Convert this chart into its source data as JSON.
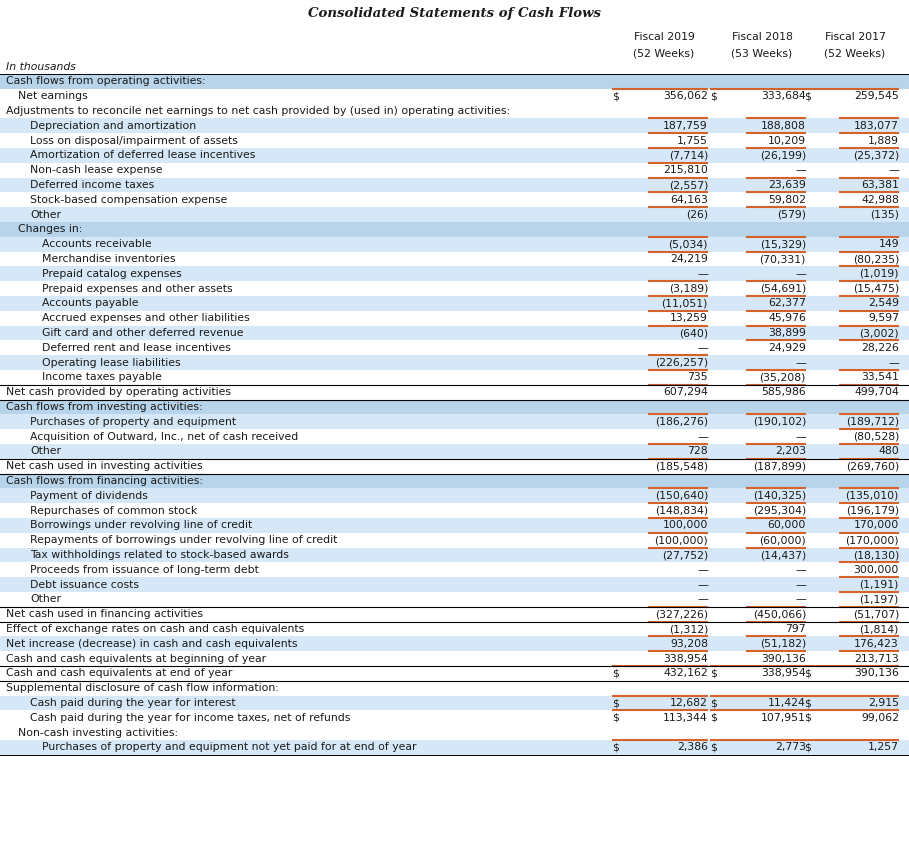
{
  "title": "Consolidated Statements of Cash Flows",
  "rows": [
    {
      "label": "Cash flows from operating activities:",
      "v1": "",
      "v2": "",
      "v3": "",
      "indent": 0,
      "style": "section"
    },
    {
      "label": "Net earnings",
      "v1": "356,062",
      "v2": "333,684",
      "v3": "259,545",
      "indent": 1,
      "style": "normal",
      "dollar": true
    },
    {
      "label": "Adjustments to reconcile net earnings to net cash provided by (used in) operating activities:",
      "v1": "",
      "v2": "",
      "v3": "",
      "indent": 0,
      "style": "normal"
    },
    {
      "label": "Depreciation and amortization",
      "v1": "187,759",
      "v2": "188,808",
      "v3": "183,077",
      "indent": 2,
      "style": "shaded",
      "dollar": false
    },
    {
      "label": "Loss on disposal/impairment of assets",
      "v1": "1,755",
      "v2": "10,209",
      "v3": "1,889",
      "indent": 2,
      "style": "normal",
      "dollar": false
    },
    {
      "label": "Amortization of deferred lease incentives",
      "v1": "(7,714)",
      "v2": "(26,199)",
      "v3": "(25,372)",
      "indent": 2,
      "style": "shaded",
      "dollar": false
    },
    {
      "label": "Non-cash lease expense",
      "v1": "215,810",
      "v2": "—",
      "v3": "—",
      "indent": 2,
      "style": "normal",
      "dollar": false
    },
    {
      "label": "Deferred income taxes",
      "v1": "(2,557)",
      "v2": "23,639",
      "v3": "63,381",
      "indent": 2,
      "style": "shaded",
      "dollar": false
    },
    {
      "label": "Stock-based compensation expense",
      "v1": "64,163",
      "v2": "59,802",
      "v3": "42,988",
      "indent": 2,
      "style": "normal",
      "dollar": false
    },
    {
      "label": "Other",
      "v1": "(26)",
      "v2": "(579)",
      "v3": "(135)",
      "indent": 2,
      "style": "shaded",
      "dollar": false
    },
    {
      "label": "Changes in:",
      "v1": "",
      "v2": "",
      "v3": "",
      "indent": 1,
      "style": "section"
    },
    {
      "label": "Accounts receivable",
      "v1": "(5,034)",
      "v2": "(15,329)",
      "v3": "149",
      "indent": 3,
      "style": "shaded",
      "dollar": false
    },
    {
      "label": "Merchandise inventories",
      "v1": "24,219",
      "v2": "(70,331)",
      "v3": "(80,235)",
      "indent": 3,
      "style": "normal",
      "dollar": false
    },
    {
      "label": "Prepaid catalog expenses",
      "v1": "—",
      "v2": "—",
      "v3": "(1,019)",
      "indent": 3,
      "style": "shaded",
      "dollar": false
    },
    {
      "label": "Prepaid expenses and other assets",
      "v1": "(3,189)",
      "v2": "(54,691)",
      "v3": "(15,475)",
      "indent": 3,
      "style": "normal",
      "dollar": false
    },
    {
      "label": "Accounts payable",
      "v1": "(11,051)",
      "v2": "62,377",
      "v3": "2,549",
      "indent": 3,
      "style": "shaded",
      "dollar": false
    },
    {
      "label": "Accrued expenses and other liabilities",
      "v1": "13,259",
      "v2": "45,976",
      "v3": "9,597",
      "indent": 3,
      "style": "normal",
      "dollar": false
    },
    {
      "label": "Gift card and other deferred revenue",
      "v1": "(640)",
      "v2": "38,899",
      "v3": "(3,002)",
      "indent": 3,
      "style": "shaded",
      "dollar": false
    },
    {
      "label": "Deferred rent and lease incentives",
      "v1": "—",
      "v2": "24,929",
      "v3": "28,226",
      "indent": 3,
      "style": "normal",
      "dollar": false
    },
    {
      "label": "Operating lease liabilities",
      "v1": "(226,257)",
      "v2": "—",
      "v3": "—",
      "indent": 3,
      "style": "shaded",
      "dollar": false
    },
    {
      "label": "Income taxes payable",
      "v1": "735",
      "v2": "(35,208)",
      "v3": "33,541",
      "indent": 3,
      "style": "normal",
      "dollar": false
    },
    {
      "label": "Net cash provided by operating activities",
      "v1": "607,294",
      "v2": "585,986",
      "v3": "499,704",
      "indent": 0,
      "style": "total",
      "dollar": false
    },
    {
      "label": "Cash flows from investing activities:",
      "v1": "",
      "v2": "",
      "v3": "",
      "indent": 0,
      "style": "section"
    },
    {
      "label": "Purchases of property and equipment",
      "v1": "(186,276)",
      "v2": "(190,102)",
      "v3": "(189,712)",
      "indent": 2,
      "style": "shaded",
      "dollar": false
    },
    {
      "label": "Acquisition of Outward, Inc., net of cash received",
      "v1": "—",
      "v2": "—",
      "v3": "(80,528)",
      "indent": 2,
      "style": "normal",
      "dollar": false
    },
    {
      "label": "Other",
      "v1": "728",
      "v2": "2,203",
      "v3": "480",
      "indent": 2,
      "style": "shaded",
      "dollar": false
    },
    {
      "label": "Net cash used in investing activities",
      "v1": "(185,548)",
      "v2": "(187,899)",
      "v3": "(269,760)",
      "indent": 0,
      "style": "total",
      "dollar": false
    },
    {
      "label": "Cash flows from financing activities:",
      "v1": "",
      "v2": "",
      "v3": "",
      "indent": 0,
      "style": "section"
    },
    {
      "label": "Payment of dividends",
      "v1": "(150,640)",
      "v2": "(140,325)",
      "v3": "(135,010)",
      "indent": 2,
      "style": "shaded",
      "dollar": false
    },
    {
      "label": "Repurchases of common stock",
      "v1": "(148,834)",
      "v2": "(295,304)",
      "v3": "(196,179)",
      "indent": 2,
      "style": "normal",
      "dollar": false
    },
    {
      "label": "Borrowings under revolving line of credit",
      "v1": "100,000",
      "v2": "60,000",
      "v3": "170,000",
      "indent": 2,
      "style": "shaded",
      "dollar": false
    },
    {
      "label": "Repayments of borrowings under revolving line of credit",
      "v1": "(100,000)",
      "v2": "(60,000)",
      "v3": "(170,000)",
      "indent": 2,
      "style": "normal",
      "dollar": false
    },
    {
      "label": "Tax withholdings related to stock-based awards",
      "v1": "(27,752)",
      "v2": "(14,437)",
      "v3": "(18,130)",
      "indent": 2,
      "style": "shaded",
      "dollar": false
    },
    {
      "label": "Proceeds from issuance of long-term debt",
      "v1": "—",
      "v2": "—",
      "v3": "300,000",
      "indent": 2,
      "style": "normal",
      "dollar": false
    },
    {
      "label": "Debt issuance costs",
      "v1": "—",
      "v2": "—",
      "v3": "(1,191)",
      "indent": 2,
      "style": "shaded",
      "dollar": false
    },
    {
      "label": "Other",
      "v1": "—",
      "v2": "—",
      "v3": "(1,197)",
      "indent": 2,
      "style": "normal",
      "dollar": false
    },
    {
      "label": "Net cash used in financing activities",
      "v1": "(327,226)",
      "v2": "(450,066)",
      "v3": "(51,707)",
      "indent": 0,
      "style": "total",
      "dollar": false
    },
    {
      "label": "Effect of exchange rates on cash and cash equivalents",
      "v1": "(1,312)",
      "v2": "797",
      "v3": "(1,814)",
      "indent": 0,
      "style": "normal",
      "dollar": false
    },
    {
      "label": "Net increase (decrease) in cash and cash equivalents",
      "v1": "93,208",
      "v2": "(51,182)",
      "v3": "176,423",
      "indent": 0,
      "style": "shaded",
      "dollar": false
    },
    {
      "label": "Cash and cash equivalents at beginning of year",
      "v1": "338,954",
      "v2": "390,136",
      "v3": "213,713",
      "indent": 0,
      "style": "normal",
      "dollar": false
    },
    {
      "label": "Cash and cash equivalents at end of year",
      "v1": "432,162",
      "v2": "338,954",
      "v3": "390,136",
      "indent": 0,
      "style": "total",
      "dollar": true
    },
    {
      "label": "Supplemental disclosure of cash flow information:",
      "v1": "",
      "v2": "",
      "v3": "",
      "indent": 0,
      "style": "normal"
    },
    {
      "label": "Cash paid during the year for interest",
      "v1": "12,682",
      "v2": "11,424",
      "v3": "2,915",
      "indent": 2,
      "style": "shaded",
      "dollar": true
    },
    {
      "label": "Cash paid during the year for income taxes, net of refunds",
      "v1": "113,344",
      "v2": "107,951",
      "v3": "99,062",
      "indent": 2,
      "style": "normal",
      "dollar": true
    },
    {
      "label": "Non-cash investing activities:",
      "v1": "",
      "v2": "",
      "v3": "",
      "indent": 1,
      "style": "normal"
    },
    {
      "label": "Purchases of property and equipment not yet paid for at end of year",
      "v1": "2,386",
      "v2": "2,773",
      "v3": "1,257",
      "indent": 3,
      "style": "shaded",
      "dollar": true
    }
  ],
  "bg_color": "#ffffff",
  "shaded_color": "#d6e8f7",
  "section_color": "#b8d4ea",
  "orange_color": "#d4622a",
  "text_color": "#1a1a1a",
  "col1_label": "Fiscal 2019",
  "col1_sub": "(52 Weeks)",
  "col2_label": "Fiscal 2018",
  "col2_sub": "(53 Weeks)",
  "col3_label": "Fiscal 2017",
  "col3_sub": "(52 Weeks)"
}
